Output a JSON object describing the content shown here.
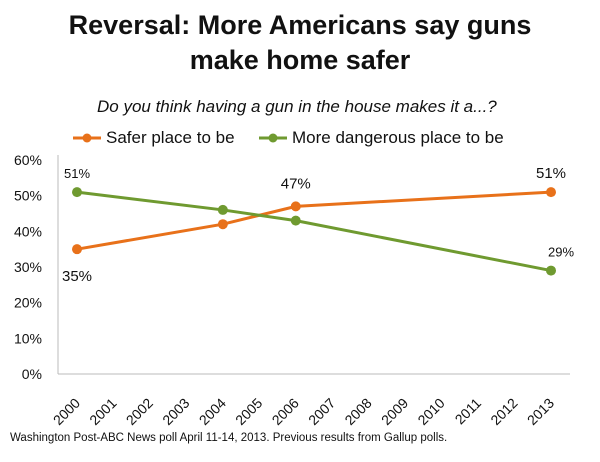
{
  "chart_data": {
    "type": "line",
    "title": "Reversal: More Americans say guns make home safer",
    "title_lines": [
      "Reversal: More Americans say guns",
      "make home safer"
    ],
    "subtitle": "Do you think having a gun in the house makes it a...?",
    "categories": [
      "2000",
      "2001",
      "2002",
      "2003",
      "2004",
      "2005",
      "2006",
      "2007",
      "2008",
      "2009",
      "2010",
      "2011",
      "2012",
      "2013"
    ],
    "series": [
      {
        "name": "Safer place to be",
        "color": "#E8711A",
        "x": [
          2000,
          2004,
          2006,
          2013
        ],
        "values": [
          35,
          42,
          47,
          51
        ],
        "data_labels": {
          "2000": "35%",
          "2006": "47%",
          "2013": "51%"
        }
      },
      {
        "name": "More dangerous place to be",
        "color": "#6F9A30",
        "x": [
          2000,
          2004,
          2006,
          2013
        ],
        "values": [
          51,
          46,
          43,
          29
        ],
        "data_labels": {
          "2000": "51%",
          "2013": "29%"
        }
      }
    ],
    "yticks": [
      "0%",
      "10%",
      "20%",
      "30%",
      "40%",
      "50%",
      "60%"
    ],
    "ylim": [
      0,
      60
    ],
    "xlim": [
      2000,
      2013
    ],
    "grid": false,
    "legend_position": "top-left",
    "source": "Washington Post-ABC News poll April 11-14, 2013. Previous results from Gallup polls."
  }
}
